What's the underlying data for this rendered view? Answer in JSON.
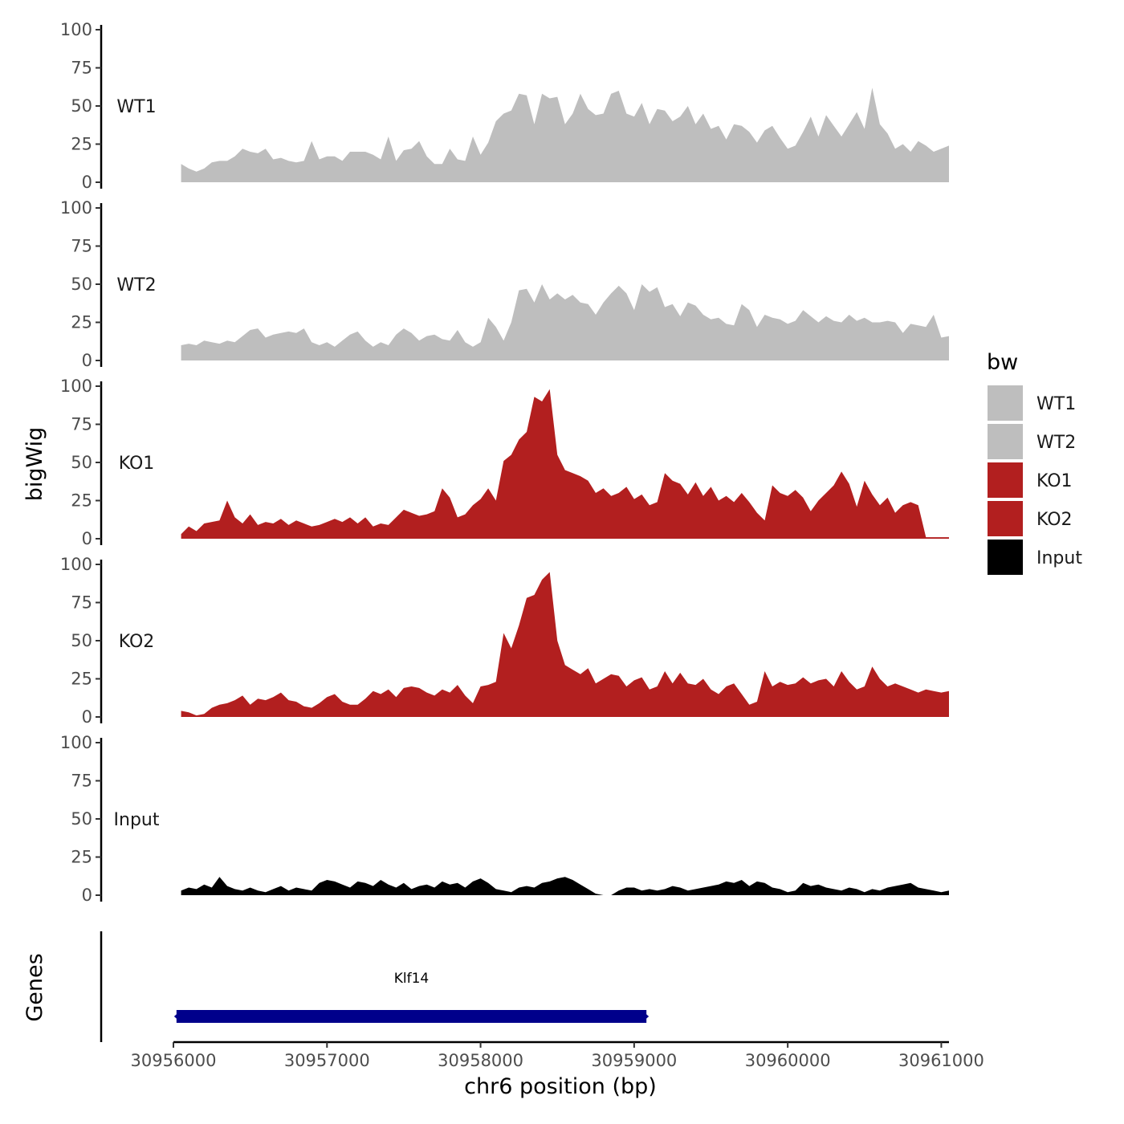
{
  "chart_data": {
    "type": "area",
    "title": "",
    "ylabel": "bigWig",
    "xlabel": "chr6 position (bp)",
    "gene_panel_label": "Genes",
    "x_range": [
      30956000,
      30961050
    ],
    "x_ticks": [
      30956000,
      30957000,
      30958000,
      30959000,
      30960000,
      30961000
    ],
    "x_tick_labels": [
      "30956000",
      "30957000",
      "30958000",
      "30959000",
      "30960000",
      "30961000"
    ],
    "y_range": [
      0,
      100
    ],
    "y_ticks": [
      0,
      25,
      50,
      75,
      100
    ],
    "y_tick_labels": [
      "0",
      "25",
      "50",
      "75",
      "100"
    ],
    "legend": {
      "title": "bw",
      "position": "right",
      "entries": [
        {
          "label": "WT1",
          "color": "#BEBEBE"
        },
        {
          "label": "WT2",
          "color": "#BEBEBE"
        },
        {
          "label": "KO1",
          "color": "#B21F1F"
        },
        {
          "label": "KO2",
          "color": "#B21F1F"
        },
        {
          "label": "Input",
          "color": "#000000"
        }
      ]
    },
    "series": [
      {
        "name": "WT1",
        "color": "#BEBEBE",
        "x": [
          30956050,
          30956100,
          30956150,
          30956200,
          30956250,
          30956300,
          30956350,
          30956400,
          30956450,
          30956500,
          30956550,
          30956600,
          30956650,
          30956700,
          30956750,
          30956800,
          30956850,
          30956900,
          30956950,
          30957000,
          30957050,
          30957100,
          30957150,
          30957200,
          30957250,
          30957300,
          30957350,
          30957400,
          30957450,
          30957500,
          30957550,
          30957600,
          30957650,
          30957700,
          30957750,
          30957800,
          30957850,
          30957900,
          30957950,
          30958000,
          30958050,
          30958100,
          30958150,
          30958200,
          30958250,
          30958300,
          30958350,
          30958400,
          30958450,
          30958500,
          30958550,
          30958600,
          30958650,
          30958700,
          30958750,
          30958800,
          30958850,
          30958900,
          30958950,
          30959000,
          30959050,
          30959100,
          30959150,
          30959200,
          30959250,
          30959300,
          30959350,
          30959400,
          30959450,
          30959500,
          30959550,
          30959600,
          30959650,
          30959700,
          30959750,
          30959800,
          30959850,
          30959900,
          30959950,
          30960000,
          30960050,
          30960100,
          30960150,
          30960200,
          30960250,
          30960300,
          30960350,
          30960400,
          30960450,
          30960500,
          30960550,
          30960600,
          30960650,
          30960700,
          30960750,
          30960800,
          30960850,
          30960900,
          30960950,
          30961000,
          30961050
        ],
        "values": [
          12,
          9,
          7,
          9,
          13,
          14,
          14,
          17,
          22,
          20,
          19,
          22,
          15,
          16,
          14,
          13,
          14,
          27,
          15,
          17,
          17,
          14,
          20,
          20,
          20,
          18,
          15,
          30,
          14,
          21,
          22,
          27,
          17,
          12,
          12,
          22,
          15,
          14,
          30,
          18,
          26,
          40,
          45,
          47,
          58,
          57,
          38,
          58,
          55,
          56,
          38,
          45,
          58,
          48,
          44,
          45,
          58,
          60,
          45,
          43,
          52,
          38,
          48,
          47,
          40,
          43,
          50,
          38,
          45,
          35,
          37,
          28,
          38,
          37,
          33,
          26,
          34,
          37,
          29,
          22,
          24,
          33,
          43,
          30,
          44,
          37,
          30,
          38,
          46,
          35,
          62,
          38,
          32,
          22,
          25,
          20,
          27,
          24,
          20,
          22,
          24
        ],
        "label": "WT1"
      },
      {
        "name": "WT2",
        "color": "#BEBEBE",
        "x": [
          30956050,
          30956100,
          30956150,
          30956200,
          30956250,
          30956300,
          30956350,
          30956400,
          30956450,
          30956500,
          30956550,
          30956600,
          30956650,
          30956700,
          30956750,
          30956800,
          30956850,
          30956900,
          30956950,
          30957000,
          30957050,
          30957100,
          30957150,
          30957200,
          30957250,
          30957300,
          30957350,
          30957400,
          30957450,
          30957500,
          30957550,
          30957600,
          30957650,
          30957700,
          30957750,
          30957800,
          30957850,
          30957900,
          30957950,
          30958000,
          30958050,
          30958100,
          30958150,
          30958200,
          30958250,
          30958300,
          30958350,
          30958400,
          30958450,
          30958500,
          30958550,
          30958600,
          30958650,
          30958700,
          30958750,
          30958800,
          30958850,
          30958900,
          30958950,
          30959000,
          30959050,
          30959100,
          30959150,
          30959200,
          30959250,
          30959300,
          30959350,
          30959400,
          30959450,
          30959500,
          30959550,
          30959600,
          30959650,
          30959700,
          30959750,
          30959800,
          30959850,
          30959900,
          30959950,
          30960000,
          30960050,
          30960100,
          30960150,
          30960200,
          30960250,
          30960300,
          30960350,
          30960400,
          30960450,
          30960500,
          30960550,
          30960600,
          30960650,
          30960700,
          30960750,
          30960800,
          30960850,
          30960900,
          30960950,
          30961000,
          30961050
        ],
        "values": [
          10,
          11,
          10,
          13,
          12,
          11,
          13,
          12,
          16,
          20,
          21,
          15,
          17,
          18,
          19,
          18,
          21,
          12,
          10,
          12,
          9,
          13,
          17,
          19,
          13,
          9,
          12,
          10,
          17,
          21,
          18,
          13,
          16,
          17,
          14,
          13,
          20,
          12,
          9,
          12,
          28,
          22,
          13,
          25,
          46,
          47,
          38,
          50,
          40,
          44,
          40,
          43,
          38,
          37,
          30,
          38,
          44,
          49,
          44,
          33,
          50,
          45,
          48,
          35,
          37,
          29,
          38,
          36,
          30,
          27,
          28,
          24,
          23,
          37,
          33,
          22,
          30,
          28,
          27,
          24,
          26,
          33,
          29,
          25,
          29,
          26,
          25,
          30,
          26,
          28,
          25,
          25,
          26,
          25,
          18,
          24,
          23,
          22,
          30,
          15,
          16
        ],
        "label": "WT2"
      },
      {
        "name": "KO1",
        "color": "#B21F1F",
        "x": [
          30956050,
          30956100,
          30956150,
          30956200,
          30956250,
          30956300,
          30956350,
          30956400,
          30956450,
          30956500,
          30956550,
          30956600,
          30956650,
          30956700,
          30956750,
          30956800,
          30956850,
          30956900,
          30956950,
          30957000,
          30957050,
          30957100,
          30957150,
          30957200,
          30957250,
          30957300,
          30957350,
          30957400,
          30957450,
          30957500,
          30957550,
          30957600,
          30957650,
          30957700,
          30957750,
          30957800,
          30957850,
          30957900,
          30957950,
          30958000,
          30958050,
          30958100,
          30958150,
          30958200,
          30958250,
          30958300,
          30958350,
          30958400,
          30958450,
          30958500,
          30958550,
          30958600,
          30958650,
          30958700,
          30958750,
          30958800,
          30958850,
          30958900,
          30958950,
          30959000,
          30959050,
          30959100,
          30959150,
          30959200,
          30959250,
          30959300,
          30959350,
          30959400,
          30959450,
          30959500,
          30959550,
          30959600,
          30959650,
          30959700,
          30959750,
          30959800,
          30959850,
          30959900,
          30959950,
          30960000,
          30960050,
          30960100,
          30960150,
          30960200,
          30960250,
          30960300,
          30960350,
          30960400,
          30960450,
          30960500,
          30960550,
          30960600,
          30960650,
          30960700,
          30960750,
          30960800,
          30960850,
          30960900,
          30960950,
          30961000,
          30961050
        ],
        "values": [
          3,
          8,
          5,
          10,
          11,
          12,
          25,
          14,
          10,
          16,
          9,
          11,
          10,
          13,
          9,
          12,
          10,
          8,
          9,
          11,
          13,
          11,
          14,
          10,
          14,
          8,
          10,
          9,
          14,
          19,
          17,
          15,
          16,
          18,
          33,
          27,
          14,
          16,
          22,
          26,
          33,
          25,
          51,
          55,
          65,
          70,
          93,
          90,
          98,
          55,
          45,
          43,
          41,
          38,
          30,
          33,
          28,
          30,
          34,
          26,
          29,
          22,
          24,
          43,
          38,
          36,
          29,
          37,
          28,
          34,
          25,
          28,
          24,
          30,
          24,
          17,
          12,
          35,
          30,
          28,
          32,
          27,
          18,
          25,
          30,
          35,
          44,
          36,
          21,
          38,
          29,
          22,
          27,
          17,
          22,
          24,
          22,
          1,
          1,
          1,
          1
        ],
        "label": "KO1"
      },
      {
        "name": "KO2",
        "color": "#B21F1F",
        "x": [
          30956050,
          30956100,
          30956150,
          30956200,
          30956250,
          30956300,
          30956350,
          30956400,
          30956450,
          30956500,
          30956550,
          30956600,
          30956650,
          30956700,
          30956750,
          30956800,
          30956850,
          30956900,
          30956950,
          30957000,
          30957050,
          30957100,
          30957150,
          30957200,
          30957250,
          30957300,
          30957350,
          30957400,
          30957450,
          30957500,
          30957550,
          30957600,
          30957650,
          30957700,
          30957750,
          30957800,
          30957850,
          30957900,
          30957950,
          30958000,
          30958050,
          30958100,
          30958150,
          30958200,
          30958250,
          30958300,
          30958350,
          30958400,
          30958450,
          30958500,
          30958550,
          30958600,
          30958650,
          30958700,
          30958750,
          30958800,
          30958850,
          30958900,
          30958950,
          30959000,
          30959050,
          30959100,
          30959150,
          30959200,
          30959250,
          30959300,
          30959350,
          30959400,
          30959450,
          30959500,
          30959550,
          30959600,
          30959650,
          30959700,
          30959750,
          30959800,
          30959850,
          30959900,
          30959950,
          30960000,
          30960050,
          30960100,
          30960150,
          30960200,
          30960250,
          30960300,
          30960350,
          30960400,
          30960450,
          30960500,
          30960550,
          30960600,
          30960650,
          30960700,
          30960750,
          30960800,
          30960850,
          30960900,
          30960950,
          30961000,
          30961050
        ],
        "values": [
          4,
          3,
          1,
          2,
          6,
          8,
          9,
          11,
          14,
          8,
          12,
          11,
          13,
          16,
          11,
          10,
          7,
          6,
          9,
          13,
          15,
          10,
          8,
          8,
          12,
          17,
          15,
          18,
          13,
          19,
          20,
          19,
          16,
          14,
          18,
          16,
          21,
          14,
          9,
          20,
          21,
          23,
          55,
          45,
          60,
          78,
          80,
          90,
          95,
          50,
          34,
          31,
          28,
          32,
          22,
          25,
          28,
          27,
          20,
          24,
          26,
          18,
          20,
          30,
          22,
          29,
          22,
          21,
          25,
          18,
          15,
          20,
          22,
          15,
          8,
          10,
          30,
          20,
          23,
          21,
          22,
          26,
          22,
          24,
          25,
          20,
          30,
          23,
          18,
          20,
          33,
          25,
          20,
          22,
          20,
          18,
          16,
          18,
          17,
          16,
          17
        ],
        "label": "KO2"
      },
      {
        "name": "Input",
        "color": "#000000",
        "x": [
          30956050,
          30956100,
          30956150,
          30956200,
          30956250,
          30956300,
          30956350,
          30956400,
          30956450,
          30956500,
          30956550,
          30956600,
          30956650,
          30956700,
          30956750,
          30956800,
          30956850,
          30956900,
          30956950,
          30957000,
          30957050,
          30957100,
          30957150,
          30957200,
          30957250,
          30957300,
          30957350,
          30957400,
          30957450,
          30957500,
          30957550,
          30957600,
          30957650,
          30957700,
          30957750,
          30957800,
          30957850,
          30957900,
          30957950,
          30958000,
          30958050,
          30958100,
          30958150,
          30958200,
          30958250,
          30958300,
          30958350,
          30958400,
          30958450,
          30958500,
          30958550,
          30958600,
          30958650,
          30958700,
          30958750,
          30958800,
          30958850,
          30958900,
          30958950,
          30959000,
          30959050,
          30959100,
          30959150,
          30959200,
          30959250,
          30959300,
          30959350,
          30959400,
          30959450,
          30959500,
          30959550,
          30959600,
          30959650,
          30959700,
          30959750,
          30959800,
          30959850,
          30959900,
          30959950,
          30960000,
          30960050,
          30960100,
          30960150,
          30960200,
          30960250,
          30960300,
          30960350,
          30960400,
          30960450,
          30960500,
          30960550,
          30960600,
          30960650,
          30960700,
          30960750,
          30960800,
          30960850,
          30960900,
          30960950,
          30961000,
          30961050
        ],
        "values": [
          3,
          5,
          4,
          7,
          5,
          12,
          6,
          4,
          3,
          5,
          3,
          2,
          4,
          6,
          3,
          5,
          4,
          3,
          8,
          10,
          9,
          7,
          5,
          9,
          8,
          6,
          10,
          7,
          5,
          8,
          4,
          6,
          7,
          5,
          9,
          7,
          8,
          5,
          9,
          11,
          8,
          4,
          3,
          2,
          5,
          6,
          5,
          8,
          9,
          11,
          12,
          10,
          7,
          4,
          1,
          0,
          0,
          3,
          5,
          5,
          3,
          4,
          3,
          4,
          6,
          5,
          3,
          4,
          5,
          6,
          7,
          9,
          8,
          10,
          6,
          9,
          8,
          5,
          4,
          2,
          3,
          8,
          6,
          7,
          5,
          4,
          3,
          5,
          4,
          2,
          4,
          3,
          5,
          6,
          7,
          8,
          5,
          4,
          3,
          2,
          3
        ],
        "label": "Input"
      }
    ],
    "genes": [
      {
        "name": "Klf14",
        "start": 30956020,
        "end": 30959080,
        "color": "#00008B"
      }
    ]
  }
}
